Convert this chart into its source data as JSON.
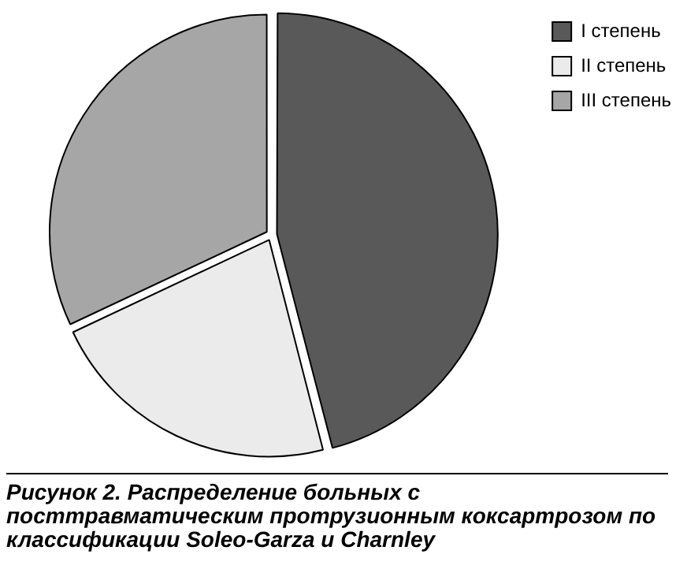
{
  "chart_data": {
    "type": "pie",
    "categories": [
      "I степень",
      "II степень",
      "III степень"
    ],
    "values": [
      46,
      22,
      32
    ],
    "colors": [
      "#595959",
      "#ebebeb",
      "#a6a6a6"
    ],
    "legend": "top right",
    "annotations": [
      "Рисунок 2. Распределение больных с посттравматическим протрузионным коксартрозом по классификации Soleo-Garza и Charnley"
    ]
  }
}
